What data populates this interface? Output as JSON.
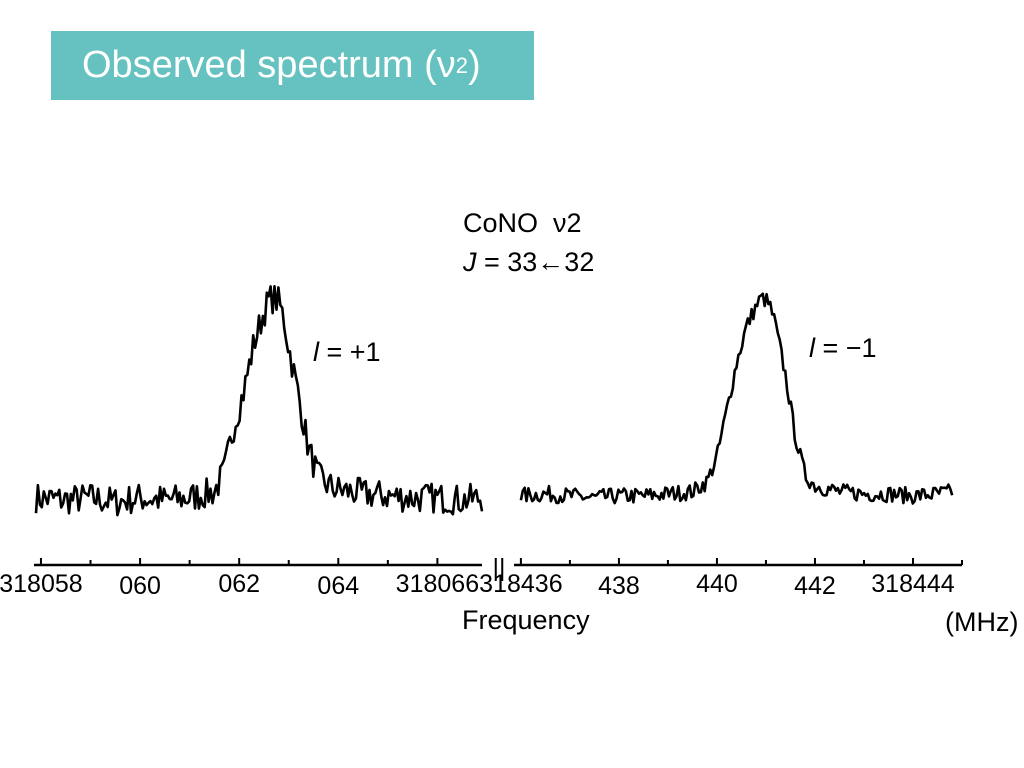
{
  "slide": {
    "title_main": "Observed spectrum (",
    "title_symbol": "ν",
    "title_sub": "2",
    "title_end": ")",
    "banner_color": "#66c2c0"
  },
  "annotations": {
    "molecule": "CoNO",
    "mode_symbol": "ν",
    "mode_number": "2",
    "transition_var": "J",
    "transition_rest": " = 33←32",
    "peak1_var": "l",
    "peak1_rest": " = +1",
    "peak2_var": "l",
    "peak2_rest": " = −1"
  },
  "chart_data": {
    "type": "line",
    "title": "",
    "xlabel": "Frequency",
    "xunit": "(MHz)",
    "ylabel": "",
    "grid": false,
    "legend": "none",
    "axis_break_marker": "||",
    "line_color": "#000000",
    "panels": [
      {
        "name": "",
        "xlim": [
          318057.9,
          318066.9
        ],
        "ylim": [
          -0.1,
          1.05
        ],
        "tick_values": [
          318058,
          318060,
          318062,
          318064,
          318066
        ],
        "tick_labels": [
          "318058",
          "060",
          "062",
          "064",
          "318066"
        ],
        "peak": {
          "center": 318062.75,
          "height": 1.0,
          "label": "l = +1"
        },
        "x": [
          318057.9,
          318058.5,
          318059.0,
          318059.5,
          318060.0,
          318060.5,
          318061.0,
          318061.5,
          318061.7,
          318061.9,
          318062.1,
          318062.3,
          318062.5,
          318062.6,
          318062.7,
          318062.8,
          318062.9,
          318063.0,
          318063.2,
          318063.4,
          318063.6,
          318063.8,
          318064.0,
          318064.5,
          318065.0,
          318065.5,
          318066.0,
          318066.5,
          318066.9
        ],
        "y": [
          0.02,
          0.01,
          0.02,
          0.0,
          0.02,
          0.01,
          0.02,
          0.05,
          0.15,
          0.38,
          0.55,
          0.78,
          0.93,
          0.99,
          1.0,
          0.98,
          0.9,
          0.76,
          0.52,
          0.26,
          0.12,
          0.08,
          0.06,
          0.04,
          0.03,
          0.02,
          0.02,
          0.01,
          0.02
        ]
      },
      {
        "name": "",
        "xlim": [
          318435.9,
          318445.0
        ],
        "ylim": [
          -0.1,
          1.05
        ],
        "tick_values": [
          318436,
          318438,
          318440,
          318442,
          318444
        ],
        "tick_labels": [
          "318436",
          "438",
          "440",
          "442",
          "318444"
        ],
        "peak": {
          "center": 318440.95,
          "height": 1.0,
          "label": "l = −1"
        },
        "x": [
          318436.0,
          318436.5,
          318437.0,
          318437.5,
          318438.0,
          318438.5,
          318439.0,
          318439.5,
          318439.8,
          318440.0,
          318440.2,
          318440.4,
          318440.6,
          318440.8,
          318440.9,
          318441.0,
          318441.1,
          318441.2,
          318441.4,
          318441.6,
          318441.8,
          318442.0,
          318442.5,
          318443.0,
          318443.5,
          318444.0,
          318444.5,
          318444.8
        ],
        "y": [
          0.03,
          0.04,
          0.03,
          0.02,
          0.03,
          0.03,
          0.04,
          0.05,
          0.1,
          0.22,
          0.45,
          0.68,
          0.86,
          0.96,
          1.0,
          0.99,
          0.95,
          0.86,
          0.62,
          0.32,
          0.13,
          0.08,
          0.05,
          0.04,
          0.04,
          0.03,
          0.04,
          0.05
        ]
      }
    ]
  }
}
